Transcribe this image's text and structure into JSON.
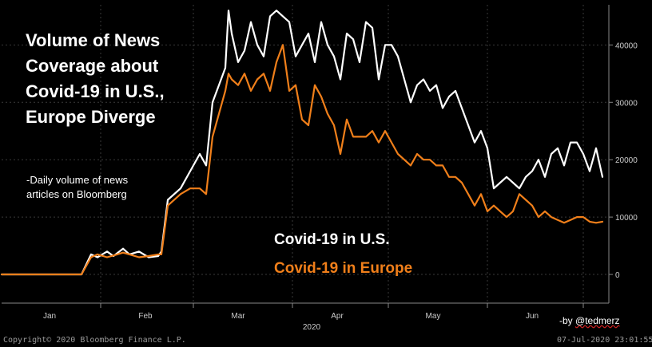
{
  "title_lines": [
    "Volume of News",
    "Coverage about",
    "Covid-19 in U.S.,",
    "Europe Diverge"
  ],
  "subtitle_lines": [
    "-Daily volume of news",
    "articles on Bloomberg"
  ],
  "credit": {
    "prefix": "-by ",
    "handle": "@tedmerz"
  },
  "footer": {
    "copyright": "Copyright© 2020 Bloomberg Finance L.P.",
    "timestamp": "07-Jul-2020 23:01:55"
  },
  "colors": {
    "background": "#000000",
    "us_series": "#ffffff",
    "europe_series": "#f07f1a",
    "grid": "#3a3a3a",
    "axis_text": "#cccccc"
  },
  "chart_data": {
    "type": "line",
    "title": "Volume of News Coverage about Covid-19 in U.S., Europe Diverge",
    "subtitle": "-Daily volume of news articles on Bloomberg",
    "xlabel": "2020",
    "ylabel": "",
    "x_unit": "day of year 2020",
    "xlim": [
      0,
      190
    ],
    "ylim": [
      -5000,
      47000
    ],
    "yticks": [
      0,
      10000,
      20000,
      30000,
      40000
    ],
    "ytick_labels": [
      "0",
      "10000",
      "20000",
      "30000",
      "40000"
    ],
    "xticks": [
      {
        "label": "Jan",
        "at": 15
      },
      {
        "label": "Feb",
        "at": 45
      },
      {
        "label": "Mar",
        "at": 74
      },
      {
        "label": "Apr",
        "at": 105
      },
      {
        "label": "May",
        "at": 135
      },
      {
        "label": "Jun",
        "at": 166
      }
    ],
    "month_boundaries": [
      31,
      60,
      91,
      121,
      152,
      182
    ],
    "year_label": "2020",
    "year_label_at": 97,
    "grid": true,
    "legend": "inline-center-bottom",
    "series": [
      {
        "name": "Covid-19 in U.S.",
        "x": [
          0,
          20,
          25,
          28,
          30,
          33,
          35,
          38,
          40,
          43,
          46,
          49,
          50,
          52,
          56,
          59,
          62,
          64,
          66,
          68,
          70,
          71,
          72,
          74,
          76,
          78,
          80,
          82,
          84,
          86,
          88,
          90,
          92,
          94,
          96,
          98,
          100,
          102,
          104,
          106,
          108,
          110,
          112,
          114,
          116,
          118,
          120,
          122,
          124,
          126,
          128,
          130,
          132,
          134,
          136,
          138,
          140,
          142,
          144,
          146,
          148,
          150,
          152,
          154,
          156,
          158,
          160,
          162,
          164,
          166,
          168,
          170,
          172,
          174,
          176,
          178,
          180,
          182,
          184,
          186,
          188
        ],
        "values": [
          0,
          0,
          0,
          3500,
          3000,
          4000,
          3200,
          4500,
          3500,
          4000,
          3000,
          3200,
          4000,
          13000,
          15000,
          18000,
          21000,
          19000,
          30000,
          33000,
          36000,
          46000,
          42000,
          37000,
          39000,
          44000,
          40000,
          38000,
          45000,
          46000,
          45000,
          44000,
          38000,
          40000,
          42000,
          37000,
          44000,
          40000,
          38000,
          34000,
          42000,
          41000,
          37000,
          44000,
          43000,
          34000,
          40000,
          40000,
          38000,
          34000,
          30000,
          33000,
          34000,
          32000,
          33000,
          29000,
          31000,
          32000,
          29000,
          26000,
          23000,
          25000,
          22000,
          15000,
          16000,
          17000,
          16000,
          15000,
          17000,
          18000,
          20000,
          17000,
          21000,
          22000,
          19000,
          23000,
          23000,
          21000,
          18000,
          22000,
          17000
        ]
      },
      {
        "name": "Covid-19 in Europe",
        "x": [
          0,
          20,
          25,
          28,
          30,
          33,
          35,
          38,
          40,
          43,
          46,
          49,
          50,
          52,
          56,
          59,
          62,
          64,
          66,
          68,
          70,
          71,
          72,
          74,
          76,
          78,
          80,
          82,
          84,
          86,
          88,
          90,
          92,
          94,
          96,
          98,
          100,
          102,
          104,
          106,
          108,
          110,
          112,
          114,
          116,
          118,
          120,
          122,
          124,
          126,
          128,
          130,
          132,
          134,
          136,
          138,
          140,
          142,
          144,
          146,
          148,
          150,
          152,
          154,
          156,
          158,
          160,
          162,
          164,
          166,
          168,
          170,
          172,
          174,
          176,
          178,
          180,
          182,
          184,
          186,
          188
        ],
        "values": [
          0,
          0,
          0,
          3000,
          3500,
          3000,
          3300,
          3800,
          3500,
          3000,
          3200,
          3500,
          3500,
          12000,
          14000,
          15000,
          15000,
          14000,
          24000,
          28000,
          32000,
          35000,
          34000,
          33000,
          35000,
          32000,
          34000,
          35000,
          32000,
          37000,
          40000,
          32000,
          33000,
          27000,
          26000,
          33000,
          31000,
          28000,
          26000,
          21000,
          27000,
          24000,
          24000,
          24000,
          25000,
          23000,
          25000,
          23000,
          21000,
          20000,
          19000,
          21000,
          20000,
          20000,
          19000,
          19000,
          17000,
          17000,
          16000,
          14000,
          12000,
          14000,
          11000,
          12000,
          11000,
          10000,
          11000,
          14000,
          13000,
          12000,
          10000,
          11000,
          10000,
          9500,
          9000,
          9500,
          10000,
          10000,
          9200,
          9000,
          9200
        ]
      }
    ]
  }
}
